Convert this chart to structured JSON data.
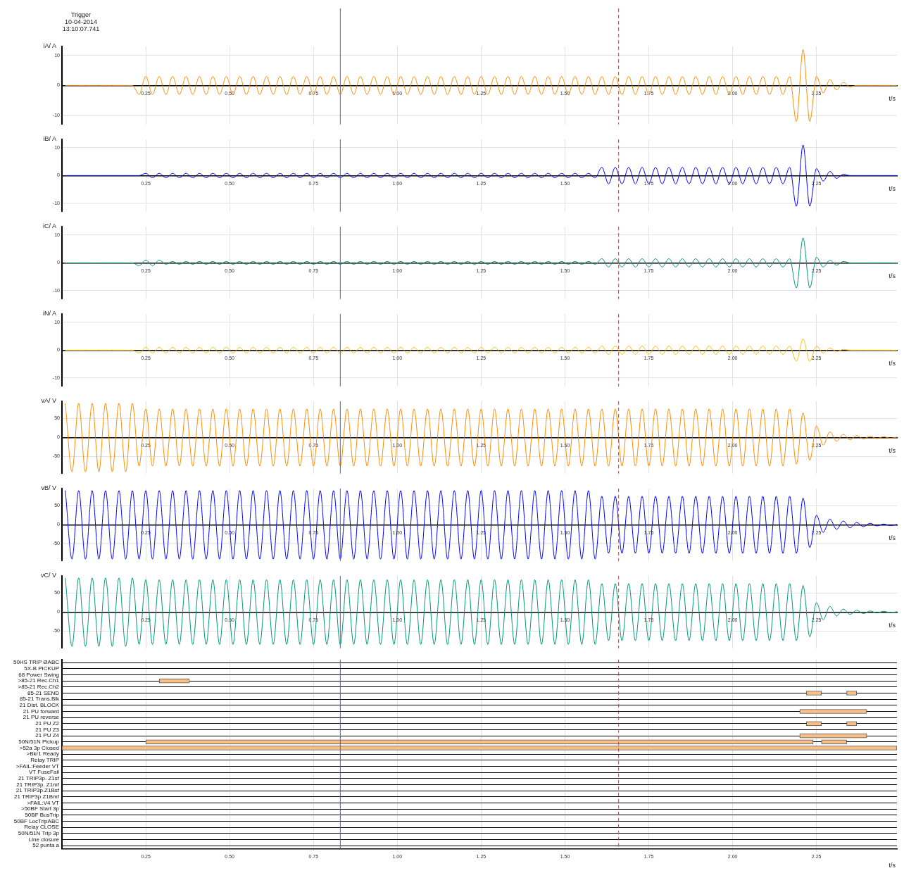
{
  "chart_data": [
    {
      "type": "line",
      "title": "Trigger\n10-04-2014\n13:10:07.741",
      "ylabel": "iA/ A",
      "xlabel": "t/s",
      "grid": true,
      "xlim": [
        0,
        2.49
      ],
      "ylim": [
        -13,
        13
      ],
      "yticks": [
        -10,
        0,
        10
      ],
      "xticks": [
        0.25,
        {
          "value": 0.5,
          "label": "0.50"
        },
        0.75,
        {
          "value": 1,
          "label": "1.00"
        },
        1.25,
        {
          "value": 1.5,
          "label": "1.50"
        },
        1.75,
        {
          "value": 2,
          "label": "2.00"
        },
        2.25
      ],
      "ref_lines": [
        {
          "axis": "x",
          "value": 0.83,
          "color": "#4466cc"
        },
        {
          "axis": "x",
          "value": 1.66,
          "color": "#995555",
          "line_style": "dashed"
        }
      ],
      "x": [
        0.01,
        0.03,
        0.05,
        0.07,
        0.09,
        0.11,
        0.13,
        0.15,
        0.17,
        0.19,
        0.21,
        0.23,
        0.25,
        0.27,
        0.29,
        0.31,
        0.33,
        0.35,
        0.37,
        0.39,
        0.41,
        0.43,
        0.45,
        0.47,
        0.49,
        0.51,
        0.53,
        0.55,
        0.57,
        0.59,
        0.61,
        0.63,
        0.65,
        0.67,
        0.69,
        0.71,
        0.73,
        0.75,
        0.77,
        0.79,
        0.81,
        0.83,
        0.85,
        0.87,
        0.89,
        0.91,
        0.93,
        0.95,
        0.97,
        0.99,
        1.01,
        1.03,
        1.05,
        1.07,
        1.09,
        1.11,
        1.13,
        1.15,
        1.17,
        1.19,
        1.21,
        1.23,
        1.25,
        1.27,
        1.29,
        1.31,
        1.33,
        1.35,
        1.37,
        1.39,
        1.41,
        1.43,
        1.45,
        1.47,
        1.49,
        1.51,
        1.53,
        1.55,
        1.57,
        1.59,
        1.61,
        1.63,
        1.65,
        1.67,
        1.69,
        1.71,
        1.73,
        1.75,
        1.77,
        1.79,
        1.81,
        1.83,
        1.85,
        1.87,
        1.89,
        1.91,
        1.93,
        1.95,
        1.97,
        1.99,
        2.01,
        2.03,
        2.05,
        2.07,
        2.09,
        2.11,
        2.13,
        2.15,
        2.17,
        2.19,
        2.21,
        2.23,
        2.25,
        2.27,
        2.29,
        2.31,
        2.33,
        2.35,
        2.37,
        2.39,
        2.41,
        2.43,
        2.45,
        2.47,
        2.49
      ],
      "series": [
        {
          "color": "#ff8c00",
          "values": [
            0,
            0,
            0,
            0,
            0,
            0,
            0,
            0,
            0,
            0,
            0,
            -3,
            3,
            -3,
            3,
            -3,
            3,
            -3,
            3,
            -3,
            3,
            -3,
            3,
            -3,
            3,
            -3,
            3,
            -3,
            3,
            -3,
            3,
            -3,
            3,
            -3,
            3,
            -3,
            3,
            -3,
            3,
            -3,
            3,
            -3,
            3,
            -3,
            3,
            -3,
            3,
            -3,
            3,
            -3,
            3,
            -3,
            3,
            -3,
            3,
            -3,
            3,
            -3,
            3,
            -3,
            3,
            -3,
            3,
            -3,
            3,
            -3,
            3,
            -3,
            3,
            -3,
            3,
            -3,
            3,
            -3,
            3,
            -3,
            3,
            -3,
            3,
            -3,
            3,
            -3,
            3,
            -3,
            3,
            -3,
            3,
            -3,
            3,
            -3,
            3,
            -3,
            3,
            -3,
            3,
            -3,
            3,
            -3,
            3,
            -3,
            3,
            -3,
            3,
            -3,
            3,
            -3,
            3,
            -3,
            3,
            -12,
            12,
            -12,
            3,
            -2.5,
            2,
            -1.5,
            1,
            -0.5,
            0,
            0,
            0,
            0,
            0,
            0,
            0
          ]
        }
      ]
    },
    {
      "type": "line",
      "ylabel": "iB/ A",
      "xlabel": "t/s",
      "grid": true,
      "xlim": [
        0,
        2.49
      ],
      "ylim": [
        -13,
        13
      ],
      "yticks": [
        -10,
        0,
        10
      ],
      "xticks": [
        0.25,
        {
          "value": 0.5,
          "label": "0.50"
        },
        0.75,
        {
          "value": 1,
          "label": "1.00"
        },
        1.25,
        {
          "value": 1.5,
          "label": "1.50"
        },
        1.75,
        {
          "value": 2,
          "label": "2.00"
        },
        2.25
      ],
      "ref_lines": [
        {
          "axis": "x",
          "value": 0.83,
          "color": "#4466cc"
        },
        {
          "axis": "x",
          "value": 1.66,
          "color": "#995555",
          "line_style": "dashed"
        }
      ],
      "x": [
        0.01,
        0.03,
        0.05,
        0.07,
        0.09,
        0.11,
        0.13,
        0.15,
        0.17,
        0.19,
        0.21,
        0.23,
        0.25,
        0.27,
        0.29,
        0.31,
        0.33,
        0.35,
        0.37,
        0.39,
        0.41,
        0.43,
        0.45,
        0.47,
        0.49,
        0.51,
        0.53,
        0.55,
        0.57,
        0.59,
        0.61,
        0.63,
        0.65,
        0.67,
        0.69,
        0.71,
        0.73,
        0.75,
        0.77,
        0.79,
        0.81,
        0.83,
        0.85,
        0.87,
        0.89,
        0.91,
        0.93,
        0.95,
        0.97,
        0.99,
        1.01,
        1.03,
        1.05,
        1.07,
        1.09,
        1.11,
        1.13,
        1.15,
        1.17,
        1.19,
        1.21,
        1.23,
        1.25,
        1.27,
        1.29,
        1.31,
        1.33,
        1.35,
        1.37,
        1.39,
        1.41,
        1.43,
        1.45,
        1.47,
        1.49,
        1.51,
        1.53,
        1.55,
        1.57,
        1.59,
        1.61,
        1.63,
        1.65,
        1.67,
        1.69,
        1.71,
        1.73,
        1.75,
        1.77,
        1.79,
        1.81,
        1.83,
        1.85,
        1.87,
        1.89,
        1.91,
        1.93,
        1.95,
        1.97,
        1.99,
        2.01,
        2.03,
        2.05,
        2.07,
        2.09,
        2.11,
        2.13,
        2.15,
        2.17,
        2.19,
        2.21,
        2.23,
        2.25,
        2.27,
        2.29,
        2.31,
        2.33,
        2.35,
        2.37,
        2.39,
        2.41,
        2.43,
        2.45,
        2.47,
        2.49
      ],
      "series": [
        {
          "color": "#0000ff",
          "values": [
            0,
            0,
            0,
            0,
            0,
            0,
            0,
            0,
            0,
            0,
            0,
            0,
            0.8,
            -0.8,
            0.8,
            -0.8,
            0.8,
            -0.8,
            0.8,
            -0.8,
            0.8,
            -0.8,
            0.8,
            -0.8,
            0.8,
            -0.8,
            0.8,
            -0.8,
            0.8,
            -0.8,
            0.8,
            -0.8,
            0.8,
            -0.8,
            0.8,
            -0.8,
            0.8,
            -0.8,
            0.8,
            -0.8,
            0.8,
            -0.8,
            0.8,
            -0.8,
            0.8,
            -0.8,
            0.8,
            -0.8,
            0.8,
            -0.8,
            0.8,
            -0.8,
            0.8,
            -0.8,
            0.8,
            -0.8,
            0.8,
            -0.8,
            0.8,
            -0.8,
            0.8,
            -0.8,
            0.8,
            -0.8,
            0.8,
            -0.8,
            0.8,
            -0.8,
            0.8,
            -0.8,
            0.8,
            -0.8,
            0.8,
            -0.8,
            0.8,
            -0.8,
            0.8,
            -0.8,
            0.8,
            -0.8,
            3,
            -3,
            3,
            -3,
            3,
            -3,
            3,
            -3,
            3,
            -3,
            3,
            -3,
            3,
            -3,
            3,
            -3,
            3,
            -3,
            3,
            -3,
            3,
            -3,
            3,
            -3,
            3,
            -3,
            3,
            -3,
            3,
            -11,
            11,
            -11,
            2.5,
            -2,
            1.5,
            -1,
            0.5,
            0,
            0,
            0,
            0,
            0,
            0,
            0,
            0
          ]
        }
      ]
    },
    {
      "type": "line",
      "ylabel": "iC/ A",
      "xlabel": "t/s",
      "grid": true,
      "xlim": [
        0,
        2.49
      ],
      "ylim": [
        -13,
        13
      ],
      "yticks": [
        -10,
        0,
        10
      ],
      "xticks": [
        0.25,
        {
          "value": 0.5,
          "label": "0.50"
        },
        0.75,
        {
          "value": 1,
          "label": "1.00"
        },
        1.25,
        {
          "value": 1.5,
          "label": "1.50"
        },
        1.75,
        {
          "value": 2,
          "label": "2.00"
        },
        2.25
      ],
      "ref_lines": [
        {
          "axis": "x",
          "value": 0.83,
          "color": "#4466cc"
        },
        {
          "axis": "x",
          "value": 1.66,
          "color": "#995555",
          "line_style": "dashed"
        }
      ],
      "x": [
        0.01,
        0.03,
        0.05,
        0.07,
        0.09,
        0.11,
        0.13,
        0.15,
        0.17,
        0.19,
        0.21,
        0.23,
        0.25,
        0.27,
        0.29,
        0.31,
        0.33,
        0.35,
        0.37,
        0.39,
        0.41,
        0.43,
        0.45,
        0.47,
        0.49,
        0.51,
        0.53,
        0.55,
        0.57,
        0.59,
        0.61,
        0.63,
        0.65,
        0.67,
        0.69,
        0.71,
        0.73,
        0.75,
        0.77,
        0.79,
        0.81,
        0.83,
        0.85,
        0.87,
        0.89,
        0.91,
        0.93,
        0.95,
        0.97,
        0.99,
        1.01,
        1.03,
        1.05,
        1.07,
        1.09,
        1.11,
        1.13,
        1.15,
        1.17,
        1.19,
        1.21,
        1.23,
        1.25,
        1.27,
        1.29,
        1.31,
        1.33,
        1.35,
        1.37,
        1.39,
        1.41,
        1.43,
        1.45,
        1.47,
        1.49,
        1.51,
        1.53,
        1.55,
        1.57,
        1.59,
        1.61,
        1.63,
        1.65,
        1.67,
        1.69,
        1.71,
        1.73,
        1.75,
        1.77,
        1.79,
        1.81,
        1.83,
        1.85,
        1.87,
        1.89,
        1.91,
        1.93,
        1.95,
        1.97,
        1.99,
        2.01,
        2.03,
        2.05,
        2.07,
        2.09,
        2.11,
        2.13,
        2.15,
        2.17,
        2.19,
        2.21,
        2.23,
        2.25,
        2.27,
        2.29,
        2.31,
        2.33,
        2.35,
        2.37,
        2.39,
        2.41,
        2.43,
        2.45,
        2.47,
        2.49
      ],
      "series": [
        {
          "color": "#009977",
          "values": [
            0,
            0,
            0,
            0,
            0,
            0,
            0,
            0,
            0,
            0,
            0,
            -1,
            1,
            -1,
            1,
            -0.5,
            0.5,
            -0.5,
            0.5,
            -0.5,
            0.5,
            -0.5,
            0.5,
            -0.5,
            0.5,
            -0.5,
            0.5,
            -0.5,
            0.5,
            -0.5,
            0.5,
            -0.5,
            0.5,
            -0.5,
            0.5,
            -0.5,
            0.5,
            -0.5,
            0.5,
            -0.5,
            0.5,
            -0.5,
            0.5,
            -0.5,
            0.5,
            -0.5,
            0.5,
            -0.5,
            0.5,
            -0.5,
            0.5,
            -0.5,
            0.5,
            -0.5,
            0.5,
            -0.5,
            0.5,
            -0.5,
            0.5,
            -0.5,
            0.5,
            -0.5,
            0.5,
            -0.5,
            0.5,
            -0.5,
            0.5,
            -0.5,
            0.5,
            -0.5,
            0.5,
            -0.5,
            0.5,
            -0.5,
            0.5,
            -0.5,
            0.5,
            -0.5,
            0.5,
            -0.5,
            1.5,
            -1.5,
            1.5,
            -1.5,
            1.5,
            -1.5,
            1.5,
            -1.5,
            1.5,
            -1.5,
            1.5,
            -1.5,
            1.5,
            -1.5,
            1.5,
            -1.5,
            1.5,
            -1.5,
            1.5,
            -1.5,
            1.5,
            -1.5,
            1.5,
            -1.5,
            1.5,
            -1.5,
            1.5,
            -1.5,
            1.5,
            -9,
            9,
            -9,
            2,
            -1.5,
            1,
            -0.8,
            0.5,
            0,
            0,
            0,
            0,
            0,
            0,
            0,
            0
          ]
        }
      ]
    },
    {
      "type": "line",
      "ylabel": "iN/ A",
      "xlabel": "t/s",
      "grid": true,
      "xlim": [
        0,
        2.49
      ],
      "ylim": [
        -13,
        13
      ],
      "yticks": [
        -10,
        0,
        10
      ],
      "xticks": [
        0.25,
        {
          "value": 0.5,
          "label": "0.50"
        },
        0.75,
        {
          "value": 1,
          "label": "1.00"
        },
        1.25,
        {
          "value": 1.5,
          "label": "1.50"
        },
        1.75,
        {
          "value": 2,
          "label": "2.00"
        },
        2.25
      ],
      "ref_lines": [
        {
          "axis": "x",
          "value": 0.83,
          "color": "#4466cc"
        },
        {
          "axis": "x",
          "value": 1.66,
          "color": "#995555",
          "line_style": "dashed"
        }
      ],
      "x": [
        0.01,
        0.03,
        0.05,
        0.07,
        0.09,
        0.11,
        0.13,
        0.15,
        0.17,
        0.19,
        0.21,
        0.23,
        0.25,
        0.27,
        0.29,
        0.31,
        0.33,
        0.35,
        0.37,
        0.39,
        0.41,
        0.43,
        0.45,
        0.47,
        0.49,
        0.51,
        0.53,
        0.55,
        0.57,
        0.59,
        0.61,
        0.63,
        0.65,
        0.67,
        0.69,
        0.71,
        0.73,
        0.75,
        0.77,
        0.79,
        0.81,
        0.83,
        0.85,
        0.87,
        0.89,
        0.91,
        0.93,
        0.95,
        0.97,
        0.99,
        1.01,
        1.03,
        1.05,
        1.07,
        1.09,
        1.11,
        1.13,
        1.15,
        1.17,
        1.19,
        1.21,
        1.23,
        1.25,
        1.27,
        1.29,
        1.31,
        1.33,
        1.35,
        1.37,
        1.39,
        1.41,
        1.43,
        1.45,
        1.47,
        1.49,
        1.51,
        1.53,
        1.55,
        1.57,
        1.59,
        1.61,
        1.63,
        1.65,
        1.67,
        1.69,
        1.71,
        1.73,
        1.75,
        1.77,
        1.79,
        1.81,
        1.83,
        1.85,
        1.87,
        1.89,
        1.91,
        1.93,
        1.95,
        1.97,
        1.99,
        2.01,
        2.03,
        2.05,
        2.07,
        2.09,
        2.11,
        2.13,
        2.15,
        2.17,
        2.19,
        2.21,
        2.23,
        2.25,
        2.27,
        2.29,
        2.31,
        2.33,
        2.35,
        2.37,
        2.39,
        2.41,
        2.43,
        2.45,
        2.47,
        2.49
      ],
      "series": [
        {
          "color": "#ffbf00",
          "values": [
            0,
            0,
            0,
            0,
            0,
            0,
            0,
            0,
            0,
            0,
            0,
            -1,
            1,
            -1,
            1,
            -1,
            1,
            -1,
            1,
            -1,
            1,
            -1,
            1,
            -1,
            1,
            -1,
            1,
            -1,
            1,
            -1,
            1,
            -1,
            1,
            -1,
            1,
            -1,
            1,
            -1,
            1,
            -1,
            1,
            -1,
            1,
            -1,
            1,
            -1,
            1,
            -1,
            1,
            -1,
            1,
            -1,
            1,
            -1,
            1,
            -1,
            1,
            -1,
            1,
            -1,
            1,
            -1,
            1,
            -1,
            1,
            -1,
            1,
            -1,
            1,
            -1,
            1,
            -1,
            1,
            -1,
            1,
            -1,
            1,
            -1,
            1,
            -1,
            1.5,
            -1.5,
            1.5,
            -1.5,
            1.5,
            -1.5,
            1.5,
            -1.5,
            1.5,
            -1.5,
            1.5,
            -1.5,
            1.5,
            -1.5,
            1.5,
            -1.5,
            1.5,
            -1.5,
            1.5,
            -1.5,
            1.5,
            -1.5,
            1.5,
            -1.5,
            1.5,
            -1.5,
            1.5,
            -1.5,
            1.5,
            -4,
            4,
            -4,
            1.5,
            -1,
            0.8,
            -0.5,
            0.3,
            0,
            0,
            0,
            0,
            0,
            0,
            0,
            0
          ]
        }
      ]
    },
    {
      "type": "line",
      "ylabel": "vA/ V",
      "xlabel": "t/s",
      "grid": true,
      "xlim": [
        0,
        2.49
      ],
      "ylim": [
        -95,
        95
      ],
      "yticks": [
        -50,
        0,
        50
      ],
      "xticks": [
        0.25,
        {
          "value": 0.5,
          "label": "0.50"
        },
        0.75,
        {
          "value": 1,
          "label": "1.00"
        },
        1.25,
        {
          "value": 1.5,
          "label": "1.50"
        },
        1.75,
        {
          "value": 2,
          "label": "2.00"
        },
        2.25
      ],
      "ref_lines": [
        {
          "axis": "x",
          "value": 0.83,
          "color": "#4466cc"
        },
        {
          "axis": "x",
          "value": 1.66,
          "color": "#995555",
          "line_style": "dashed"
        }
      ],
      "x": [
        0.01,
        0.03,
        0.05,
        0.07,
        0.09,
        0.11,
        0.13,
        0.15,
        0.17,
        0.19,
        0.21,
        0.23,
        0.25,
        0.27,
        0.29,
        0.31,
        0.33,
        0.35,
        0.37,
        0.39,
        0.41,
        0.43,
        0.45,
        0.47,
        0.49,
        0.51,
        0.53,
        0.55,
        0.57,
        0.59,
        0.61,
        0.63,
        0.65,
        0.67,
        0.69,
        0.71,
        0.73,
        0.75,
        0.77,
        0.79,
        0.81,
        0.83,
        0.85,
        0.87,
        0.89,
        0.91,
        0.93,
        0.95,
        0.97,
        0.99,
        1.01,
        1.03,
        1.05,
        1.07,
        1.09,
        1.11,
        1.13,
        1.15,
        1.17,
        1.19,
        1.21,
        1.23,
        1.25,
        1.27,
        1.29,
        1.31,
        1.33,
        1.35,
        1.37,
        1.39,
        1.41,
        1.43,
        1.45,
        1.47,
        1.49,
        1.51,
        1.53,
        1.55,
        1.57,
        1.59,
        1.61,
        1.63,
        1.65,
        1.67,
        1.69,
        1.71,
        1.73,
        1.75,
        1.77,
        1.79,
        1.81,
        1.83,
        1.85,
        1.87,
        1.89,
        1.91,
        1.93,
        1.95,
        1.97,
        1.99,
        2.01,
        2.03,
        2.05,
        2.07,
        2.09,
        2.11,
        2.13,
        2.15,
        2.17,
        2.19,
        2.21,
        2.23,
        2.25,
        2.27,
        2.29,
        2.31,
        2.33,
        2.35,
        2.37,
        2.39,
        2.41,
        2.43,
        2.45,
        2.47,
        2.49
      ],
      "series": [
        {
          "color": "#ff8c00",
          "values": [
            90,
            -90,
            90,
            -90,
            90,
            -90,
            90,
            -90,
            90,
            -90,
            90,
            -75,
            75,
            -75,
            75,
            -75,
            75,
            -75,
            75,
            -75,
            75,
            -75,
            75,
            -75,
            75,
            -75,
            75,
            -75,
            75,
            -75,
            75,
            -75,
            75,
            -75,
            75,
            -75,
            75,
            -75,
            75,
            -75,
            75,
            -75,
            75,
            -75,
            75,
            -75,
            75,
            -75,
            75,
            -75,
            75,
            -75,
            75,
            -75,
            75,
            -75,
            75,
            -75,
            75,
            -75,
            75,
            -75,
            75,
            -75,
            75,
            -75,
            75,
            -75,
            75,
            -75,
            75,
            -75,
            75,
            -75,
            75,
            -75,
            75,
            -75,
            75,
            -75,
            75,
            -75,
            75,
            -75,
            75,
            -75,
            75,
            -75,
            75,
            -75,
            75,
            -75,
            75,
            -75,
            75,
            -75,
            75,
            -75,
            75,
            -75,
            75,
            -75,
            75,
            -75,
            75,
            -75,
            75,
            -75,
            75,
            -70,
            65,
            -60,
            30,
            -20,
            15,
            -10,
            8,
            -6,
            5,
            -4,
            3,
            -3,
            2,
            -2,
            1
          ]
        }
      ]
    },
    {
      "type": "line",
      "ylabel": "vB/ V",
      "xlabel": "t/s",
      "grid": true,
      "xlim": [
        0,
        2.49
      ],
      "ylim": [
        -95,
        95
      ],
      "yticks": [
        -50,
        0,
        50
      ],
      "xticks": [
        0.25,
        {
          "value": 0.5,
          "label": "0.50"
        },
        0.75,
        {
          "value": 1,
          "label": "1.00"
        },
        1.25,
        {
          "value": 1.5,
          "label": "1.50"
        },
        1.75,
        {
          "value": 2,
          "label": "2.00"
        },
        2.25
      ],
      "ref_lines": [
        {
          "axis": "x",
          "value": 0.83,
          "color": "#4466cc"
        },
        {
          "axis": "x",
          "value": 1.66,
          "color": "#995555",
          "line_style": "dashed"
        }
      ],
      "x": [
        0.01,
        0.03,
        0.05,
        0.07,
        0.09,
        0.11,
        0.13,
        0.15,
        0.17,
        0.19,
        0.21,
        0.23,
        0.25,
        0.27,
        0.29,
        0.31,
        0.33,
        0.35,
        0.37,
        0.39,
        0.41,
        0.43,
        0.45,
        0.47,
        0.49,
        0.51,
        0.53,
        0.55,
        0.57,
        0.59,
        0.61,
        0.63,
        0.65,
        0.67,
        0.69,
        0.71,
        0.73,
        0.75,
        0.77,
        0.79,
        0.81,
        0.83,
        0.85,
        0.87,
        0.89,
        0.91,
        0.93,
        0.95,
        0.97,
        0.99,
        1.01,
        1.03,
        1.05,
        1.07,
        1.09,
        1.11,
        1.13,
        1.15,
        1.17,
        1.19,
        1.21,
        1.23,
        1.25,
        1.27,
        1.29,
        1.31,
        1.33,
        1.35,
        1.37,
        1.39,
        1.41,
        1.43,
        1.45,
        1.47,
        1.49,
        1.51,
        1.53,
        1.55,
        1.57,
        1.59,
        1.61,
        1.63,
        1.65,
        1.67,
        1.69,
        1.71,
        1.73,
        1.75,
        1.77,
        1.79,
        1.81,
        1.83,
        1.85,
        1.87,
        1.89,
        1.91,
        1.93,
        1.95,
        1.97,
        1.99,
        2.01,
        2.03,
        2.05,
        2.07,
        2.09,
        2.11,
        2.13,
        2.15,
        2.17,
        2.19,
        2.21,
        2.23,
        2.25,
        2.27,
        2.29,
        2.31,
        2.33,
        2.35,
        2.37,
        2.39,
        2.41,
        2.43,
        2.45,
        2.47,
        2.49
      ],
      "series": [
        {
          "color": "#0000ff",
          "values": [
            90,
            -90,
            90,
            -90,
            90,
            -90,
            90,
            -90,
            90,
            -90,
            90,
            -90,
            90,
            -90,
            90,
            -90,
            90,
            -90,
            90,
            -90,
            90,
            -90,
            90,
            -90,
            90,
            -90,
            90,
            -90,
            90,
            -90,
            90,
            -90,
            90,
            -90,
            90,
            -90,
            90,
            -90,
            90,
            -90,
            90,
            -90,
            90,
            -90,
            90,
            -90,
            90,
            -90,
            90,
            -90,
            90,
            -90,
            90,
            -90,
            90,
            -90,
            90,
            -90,
            90,
            -90,
            90,
            -90,
            90,
            -90,
            90,
            -90,
            90,
            -90,
            90,
            -90,
            90,
            -90,
            90,
            -90,
            90,
            -90,
            90,
            -90,
            90,
            -90,
            75,
            -75,
            75,
            -75,
            75,
            -75,
            75,
            -75,
            75,
            -75,
            75,
            -75,
            75,
            -75,
            75,
            -75,
            75,
            -75,
            75,
            -75,
            75,
            -75,
            75,
            -75,
            75,
            -75,
            75,
            -75,
            75,
            -75,
            70,
            -60,
            25,
            -20,
            15,
            -12,
            10,
            -8,
            6,
            -5,
            4,
            -3,
            2,
            -2,
            1
          ]
        }
      ]
    },
    {
      "type": "line",
      "ylabel": "vC/ V",
      "xlabel": "t/s",
      "grid": true,
      "xlim": [
        0,
        2.49
      ],
      "ylim": [
        -95,
        95
      ],
      "yticks": [
        -50,
        0,
        50
      ],
      "xticks": [
        0.25,
        {
          "value": 0.5,
          "label": "0.50"
        },
        0.75,
        {
          "value": 1,
          "label": "1.00"
        },
        1.25,
        {
          "value": 1.5,
          "label": "1.50"
        },
        1.75,
        {
          "value": 2,
          "label": "2.00"
        },
        2.25
      ],
      "ref_lines": [
        {
          "axis": "x",
          "value": 0.83,
          "color": "#4466cc"
        },
        {
          "axis": "x",
          "value": 1.66,
          "color": "#995555",
          "line_style": "dashed"
        }
      ],
      "x": [
        0.01,
        0.03,
        0.05,
        0.07,
        0.09,
        0.11,
        0.13,
        0.15,
        0.17,
        0.19,
        0.21,
        0.23,
        0.25,
        0.27,
        0.29,
        0.31,
        0.33,
        0.35,
        0.37,
        0.39,
        0.41,
        0.43,
        0.45,
        0.47,
        0.49,
        0.51,
        0.53,
        0.55,
        0.57,
        0.59,
        0.61,
        0.63,
        0.65,
        0.67,
        0.69,
        0.71,
        0.73,
        0.75,
        0.77,
        0.79,
        0.81,
        0.83,
        0.85,
        0.87,
        0.89,
        0.91,
        0.93,
        0.95,
        0.97,
        0.99,
        1.01,
        1.03,
        1.05,
        1.07,
        1.09,
        1.11,
        1.13,
        1.15,
        1.17,
        1.19,
        1.21,
        1.23,
        1.25,
        1.27,
        1.29,
        1.31,
        1.33,
        1.35,
        1.37,
        1.39,
        1.41,
        1.43,
        1.45,
        1.47,
        1.49,
        1.51,
        1.53,
        1.55,
        1.57,
        1.59,
        1.61,
        1.63,
        1.65,
        1.67,
        1.69,
        1.71,
        1.73,
        1.75,
        1.77,
        1.79,
        1.81,
        1.83,
        1.85,
        1.87,
        1.89,
        1.91,
        1.93,
        1.95,
        1.97,
        1.99,
        2.01,
        2.03,
        2.05,
        2.07,
        2.09,
        2.11,
        2.13,
        2.15,
        2.17,
        2.19,
        2.21,
        2.23,
        2.25,
        2.27,
        2.29,
        2.31,
        2.33,
        2.35,
        2.37,
        2.39,
        2.41,
        2.43,
        2.45,
        2.47,
        2.49
      ],
      "series": [
        {
          "color": "#009977",
          "values": [
            90,
            -90,
            90,
            -90,
            90,
            -90,
            90,
            -90,
            90,
            -90,
            90,
            -85,
            85,
            -85,
            85,
            -85,
            85,
            -85,
            85,
            -85,
            85,
            -85,
            85,
            -85,
            85,
            -85,
            85,
            -85,
            85,
            -85,
            85,
            -85,
            85,
            -85,
            85,
            -85,
            85,
            -85,
            85,
            -85,
            85,
            -85,
            85,
            -85,
            85,
            -85,
            85,
            -85,
            85,
            -85,
            85,
            -85,
            85,
            -85,
            85,
            -85,
            85,
            -85,
            85,
            -85,
            85,
            -85,
            85,
            -85,
            85,
            -85,
            85,
            -85,
            85,
            -85,
            85,
            -85,
            85,
            -85,
            85,
            -85,
            85,
            -85,
            85,
            -85,
            75,
            -75,
            75,
            -75,
            75,
            -75,
            75,
            -75,
            75,
            -75,
            75,
            -75,
            75,
            -75,
            75,
            -75,
            75,
            -75,
            75,
            -75,
            75,
            -75,
            75,
            -75,
            75,
            -75,
            75,
            -75,
            75,
            -75,
            70,
            -65,
            25,
            -20,
            15,
            -10,
            8,
            -6,
            5,
            -4,
            3,
            -2,
            2,
            -1,
            1
          ]
        }
      ]
    },
    {
      "type": "bar",
      "orientation": "horizontal",
      "xlabel": "t/s",
      "grid": true,
      "xlim": [
        0,
        2.49
      ],
      "xticks": [
        0.25,
        {
          "value": 0.5,
          "label": "0.50"
        },
        0.75,
        {
          "value": 1,
          "label": "1.00"
        },
        1.25,
        {
          "value": 1.5,
          "label": "1.50"
        },
        1.75,
        {
          "value": 2,
          "label": "2.00"
        },
        2.25
      ],
      "ref_lines": [
        {
          "axis": "x",
          "value": 0.83,
          "color": "#4466cc"
        },
        {
          "axis": "x",
          "value": 1.66,
          "color": "#995555",
          "line_style": "dashed"
        }
      ],
      "categories": [
        "50HS TRIP ØABC",
        "5X-B PICKUP",
        "68 Power Swing",
        ">85-21 Rec.Ch1",
        ">85-21 Rec.Ch2",
        "85-21 SEND",
        "85-21 Trans.Blk",
        "21 Dist. BLOCK",
        "21 PU forward",
        "21 PU reverse",
        "21 PU Z2",
        "21 PU Z3",
        "21 PU Z4",
        "50N/51N Pickup",
        ">52a 3p Closed",
        ">Bkr1 Ready",
        "Relay TRIP",
        ">FAIL:Feeder VT",
        "VT FuseFail",
        "21 TRIP3p. Z1sf",
        "21 TRIP3p. Z1mf",
        "21 TRIP3p.Z1Bsf",
        "21 TRIP3p Z1Bmf",
        ">FAIL:V4 VT",
        ">50BF Start 3p",
        "50BF BusTrip",
        "50BF LocTripABC",
        "Relay CLOSE",
        "50N/51N Trip 3p",
        "Line closure",
        "52 punta a"
      ],
      "series": [
        {
          "color": "#fbbf85",
          "base": [
            null,
            null,
            null,
            0.29,
            null,
            2.22,
            null,
            null,
            2.2,
            null,
            2.22,
            null,
            2.2,
            0.25,
            0,
            null,
            null,
            null,
            null,
            null,
            null,
            null,
            null,
            null,
            null,
            null,
            null,
            null,
            null,
            null,
            null
          ],
          "values": [
            null,
            null,
            null,
            0.09,
            null,
            0.045,
            null,
            null,
            0.2,
            null,
            0.045,
            null,
            0.2,
            1.99,
            2.49,
            null,
            null,
            null,
            null,
            null,
            null,
            null,
            null,
            null,
            null,
            null,
            null,
            null,
            null,
            null,
            null
          ]
        },
        {
          "color": "#fbbf85",
          "base": [
            null,
            null,
            null,
            null,
            null,
            2.34,
            null,
            null,
            null,
            null,
            2.34,
            null,
            null,
            2.265,
            null,
            null,
            null,
            null,
            null,
            null,
            null,
            null,
            null,
            null,
            null,
            null,
            null,
            null,
            null,
            null,
            null
          ],
          "values": [
            null,
            null,
            null,
            null,
            null,
            0.03,
            null,
            null,
            null,
            null,
            0.03,
            null,
            null,
            0.075,
            null,
            null,
            null,
            null,
            null,
            null,
            null,
            null,
            null,
            null,
            null,
            null,
            null,
            null,
            null,
            null,
            null
          ]
        }
      ]
    }
  ]
}
